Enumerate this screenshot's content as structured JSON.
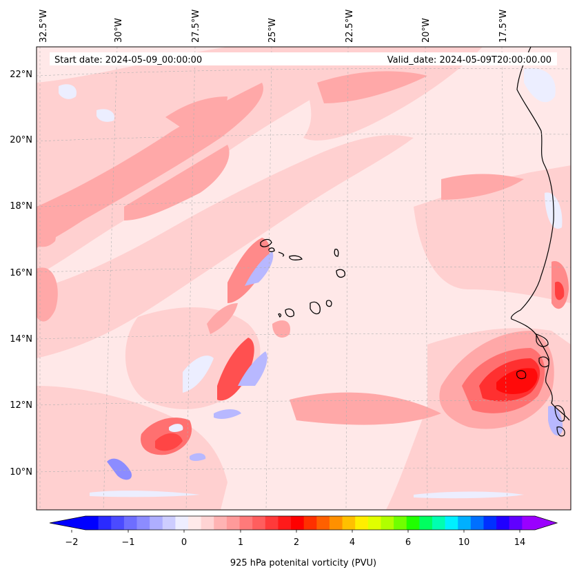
{
  "map": {
    "start_label": "Start date: 2024-05-09_00:00:00",
    "valid_label": "Valid_date: 2024-05-09T20:00:00.00",
    "lon_labels": [
      "32.5°W",
      "30°W",
      "27.5°W",
      "25°W",
      "22.5°W",
      "20°W",
      "17.5°W"
    ],
    "lat_labels": [
      "22°N",
      "20°N",
      "18°N",
      "16°N",
      "14°N",
      "12°N",
      "10°N"
    ],
    "extent": {
      "lon_min": -32.6,
      "lon_max": -15.3,
      "lat_min": 8.9,
      "lat_max": 22.8
    },
    "projection": "lambert-conformal",
    "gridlines": "dashed"
  },
  "colorbar": {
    "label": "925 hPa potenital vorticity (PVU)",
    "ticks": [
      "−2",
      "−1",
      "0",
      "1",
      "2",
      "4",
      "6",
      "10",
      "14"
    ],
    "extend": "both",
    "colors": [
      "#0000ff",
      "#2a2aff",
      "#4b4bff",
      "#6e6eff",
      "#8c8cff",
      "#aeaeff",
      "#cdcdff",
      "#eeeeff",
      "#ffeaea",
      "#ffd4d4",
      "#ffb3b3",
      "#ff9a9a",
      "#ff7a7a",
      "#ff5e5e",
      "#ff3a3a",
      "#ff1a1a",
      "#ff0000",
      "#ff3000",
      "#ff6000",
      "#ff9000",
      "#ffc000",
      "#ffee00",
      "#e0ff00",
      "#b0ff00",
      "#70ff00",
      "#20ff00",
      "#00ff60",
      "#00ffb0",
      "#00f0ff",
      "#00b0ff",
      "#0070ff",
      "#0030ff",
      "#2000ff",
      "#6000ff",
      "#9a00ff"
    ]
  },
  "palette": {
    "background_pink": "#ffe8e8",
    "light_pink": "#ffd0d0",
    "mid_pink": "#ffa8a8",
    "strong_pink": "#ff8a8a",
    "red": "#ff4040",
    "deep_red": "#ff0a0a",
    "light_blue": "#eceeff",
    "mid_blue": "#b8b8ff",
    "coast": "#000000"
  }
}
